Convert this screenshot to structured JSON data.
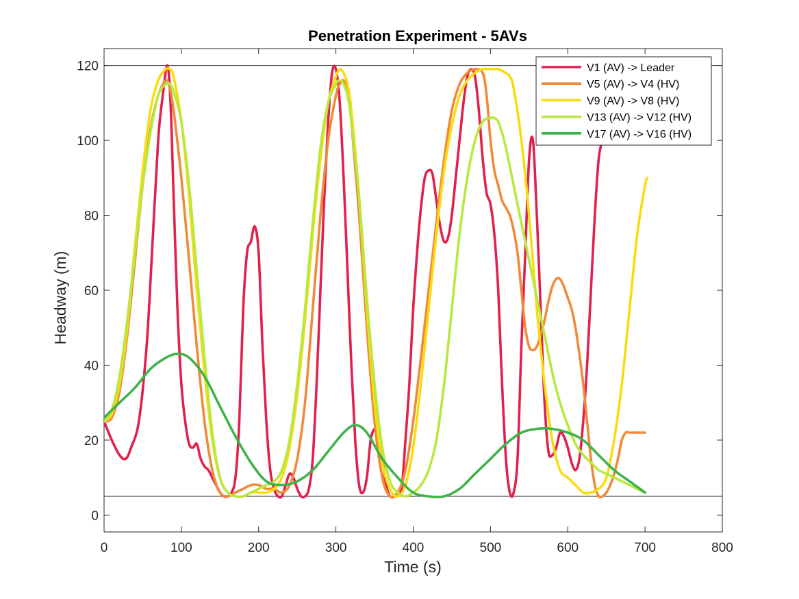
{
  "chart_data": {
    "type": "line",
    "title": "Penetration Experiment - 5AVs",
    "xlabel": "Time (s)",
    "ylabel": "Headway (m)",
    "xlim": [
      0,
      800
    ],
    "ylim": [
      -4.5,
      124.5
    ],
    "xticks": [
      0,
      100,
      200,
      300,
      400,
      500,
      600,
      700,
      800
    ],
    "yticks": [
      0,
      20,
      40,
      60,
      80,
      100,
      120
    ],
    "reference_lines": [
      120,
      5
    ],
    "grid": false,
    "legend_position": "top-right",
    "series": [
      {
        "name": "V1 (AV) -> Leader",
        "color": "#e0204f",
        "x": [
          0,
          10,
          20,
          28,
          35,
          45,
          55,
          62,
          70,
          76,
          82,
          86,
          90,
          95,
          100,
          105,
          110,
          115,
          120,
          125,
          130,
          135,
          140,
          145,
          150,
          155,
          160,
          165,
          170,
          175,
          180,
          185,
          190,
          195,
          200,
          205,
          210,
          215,
          220,
          225,
          230,
          235,
          240,
          245,
          250,
          255,
          260,
          265,
          270,
          275,
          280,
          285,
          290,
          295,
          300,
          305,
          310,
          315,
          320,
          325,
          330,
          335,
          340,
          345,
          350,
          355,
          360,
          365,
          370,
          375,
          380,
          385,
          390,
          395,
          400,
          405,
          410,
          415,
          420,
          425,
          430,
          435,
          440,
          445,
          450,
          455,
          460,
          465,
          470,
          475,
          480,
          485,
          490,
          495,
          500,
          505,
          510,
          515,
          520,
          525,
          530,
          535,
          540,
          545,
          550,
          555,
          560,
          565,
          570,
          575,
          580,
          585,
          590,
          595,
          600,
          605,
          610,
          615,
          620,
          625,
          630,
          635,
          640,
          645,
          650,
          655,
          660,
          665,
          670,
          675,
          680,
          685,
          690,
          695,
          700
        ],
        "y": [
          25,
          20,
          16,
          15,
          18,
          25,
          45,
          70,
          100,
          112,
          120,
          110,
          85,
          55,
          35,
          25,
          19,
          18,
          19,
          15,
          13,
          12,
          10,
          8,
          6,
          5,
          5,
          6,
          10,
          25,
          55,
          70,
          73,
          77,
          70,
          45,
          25,
          12,
          7,
          5,
          5,
          8,
          11,
          10,
          7,
          5,
          5,
          7,
          15,
          35,
          60,
          85,
          105,
          118,
          119,
          110,
          90,
          65,
          40,
          20,
          8,
          6,
          10,
          20,
          23,
          22,
          15,
          8,
          5,
          5,
          6,
          7,
          20,
          35,
          55,
          70,
          82,
          90,
          92,
          91,
          84,
          77,
          73,
          74,
          80,
          90,
          100,
          110,
          117,
          119,
          117,
          108,
          95,
          86,
          83,
          75,
          60,
          35,
          15,
          6,
          6,
          15,
          45,
          70,
          95,
          100,
          80,
          55,
          30,
          17,
          16,
          18,
          22,
          21,
          18,
          14,
          12,
          15,
          25,
          40,
          60,
          80,
          95,
          100,
          102,
          105,
          108,
          110,
          112,
          113,
          115,
          116,
          117,
          117,
          118
        ],
        "x_end_override": 700
      },
      {
        "name": "V5 (AV) -> V4 (HV)",
        "color": "#f08a3a",
        "x": [
          0,
          10,
          20,
          30,
          40,
          50,
          60,
          70,
          80,
          85,
          90,
          100,
          110,
          120,
          130,
          140,
          150,
          160,
          170,
          180,
          190,
          200,
          210,
          220,
          230,
          240,
          250,
          260,
          270,
          280,
          290,
          300,
          305,
          310,
          315,
          320,
          330,
          340,
          350,
          360,
          370,
          380,
          390,
          400,
          410,
          420,
          430,
          440,
          450,
          460,
          470,
          480,
          490,
          495,
          500,
          505,
          510,
          515,
          520,
          525,
          530,
          535,
          540,
          545,
          550,
          555,
          560,
          565,
          570,
          575,
          580,
          585,
          590,
          595,
          600,
          605,
          610,
          615,
          620,
          625,
          630,
          635,
          640,
          645,
          650,
          655,
          660,
          665,
          670,
          675,
          680,
          685,
          690,
          695,
          700
        ],
        "y": [
          25,
          26,
          33,
          48,
          68,
          88,
          103,
          112,
          116,
          114,
          108,
          90,
          68,
          45,
          25,
          12,
          6,
          5,
          6,
          7,
          8,
          8,
          7,
          7,
          6,
          8,
          15,
          30,
          55,
          80,
          100,
          112,
          115,
          116,
          113,
          105,
          80,
          50,
          25,
          10,
          5,
          6,
          12,
          25,
          42,
          60,
          78,
          95,
          108,
          115,
          118,
          119,
          118,
          112,
          100,
          92,
          88,
          84,
          82,
          80,
          76,
          70,
          60,
          50,
          45,
          44,
          45,
          48,
          52,
          57,
          61,
          63,
          63,
          61,
          58,
          55,
          50,
          43,
          35,
          25,
          15,
          8,
          5,
          5,
          6,
          8,
          11,
          15,
          20,
          22,
          22,
          22,
          22,
          22,
          22
        ],
        "x_end_override": 703
      },
      {
        "name": "V9 (AV) -> V8 (HV)",
        "color": "#f8dc10",
        "x": [
          0,
          10,
          20,
          30,
          40,
          50,
          60,
          70,
          80,
          85,
          90,
          100,
          110,
          120,
          130,
          140,
          150,
          160,
          170,
          180,
          190,
          200,
          210,
          220,
          230,
          240,
          250,
          260,
          270,
          280,
          290,
          300,
          305,
          310,
          315,
          320,
          330,
          340,
          350,
          360,
          370,
          380,
          390,
          400,
          410,
          420,
          430,
          440,
          450,
          460,
          470,
          480,
          490,
          500,
          510,
          520,
          525,
          530,
          540,
          550,
          560,
          570,
          580,
          590,
          600,
          610,
          620,
          630,
          640,
          650,
          660,
          670,
          680,
          690,
          700,
          703
        ],
        "y": [
          25,
          27,
          35,
          50,
          72,
          92,
          108,
          116,
          119,
          119,
          117,
          105,
          85,
          60,
          38,
          20,
          10,
          6,
          5,
          5,
          6,
          6,
          6,
          7,
          10,
          18,
          32,
          52,
          75,
          95,
          110,
          117,
          119,
          118,
          115,
          108,
          85,
          55,
          30,
          14,
          7,
          5,
          8,
          18,
          35,
          55,
          75,
          92,
          104,
          112,
          116,
          118,
          119,
          119,
          119,
          118,
          117,
          114,
          100,
          80,
          55,
          35,
          20,
          12,
          10,
          8,
          6,
          6,
          7,
          10,
          20,
          35,
          55,
          75,
          88,
          90
        ]
      },
      {
        "name": "V13 (AV) -> V12 (HV)",
        "color": "#b8e840",
        "x": [
          0,
          10,
          20,
          30,
          40,
          50,
          60,
          70,
          80,
          85,
          90,
          100,
          110,
          120,
          130,
          140,
          150,
          160,
          170,
          180,
          190,
          200,
          210,
          220,
          230,
          240,
          250,
          260,
          270,
          280,
          290,
          300,
          305,
          310,
          315,
          320,
          330,
          340,
          350,
          360,
          370,
          380,
          390,
          400,
          410,
          420,
          430,
          440,
          450,
          460,
          470,
          480,
          490,
          500,
          505,
          510,
          515,
          520,
          530,
          540,
          550,
          560,
          570,
          580,
          590,
          600,
          610,
          620,
          630,
          640,
          650,
          660,
          670,
          680,
          690,
          700
        ],
        "y": [
          25,
          28,
          37,
          52,
          70,
          88,
          102,
          112,
          115,
          115,
          113,
          105,
          88,
          65,
          42,
          22,
          10,
          6,
          5,
          5,
          6,
          7,
          8,
          9,
          12,
          20,
          35,
          55,
          78,
          98,
          110,
          115,
          116,
          115,
          112,
          105,
          85,
          58,
          35,
          18,
          9,
          6,
          5,
          6,
          8,
          12,
          20,
          35,
          55,
          75,
          90,
          100,
          105,
          106,
          106,
          105,
          102,
          98,
          88,
          78,
          68,
          58,
          48,
          38,
          30,
          24,
          19,
          16,
          14,
          12,
          11,
          10,
          9,
          8,
          7,
          6
        ]
      },
      {
        "name": "V17 (AV) -> V16 (HV)",
        "color": "#3fb24a",
        "x": [
          0,
          20,
          40,
          60,
          80,
          95,
          110,
          130,
          150,
          170,
          190,
          210,
          230,
          250,
          270,
          290,
          310,
          325,
          340,
          360,
          380,
          400,
          420,
          440,
          460,
          480,
          500,
          520,
          540,
          560,
          580,
          600,
          620,
          640,
          660,
          680,
          700
        ],
        "y": [
          26,
          30,
          34,
          39,
          42,
          43,
          42,
          37,
          29,
          21,
          14,
          9,
          8,
          9,
          12,
          17,
          22,
          24,
          22,
          15,
          10,
          6,
          5,
          5,
          7,
          11,
          15,
          19,
          22,
          23,
          23,
          22,
          20,
          16,
          12,
          9,
          6
        ]
      }
    ]
  }
}
